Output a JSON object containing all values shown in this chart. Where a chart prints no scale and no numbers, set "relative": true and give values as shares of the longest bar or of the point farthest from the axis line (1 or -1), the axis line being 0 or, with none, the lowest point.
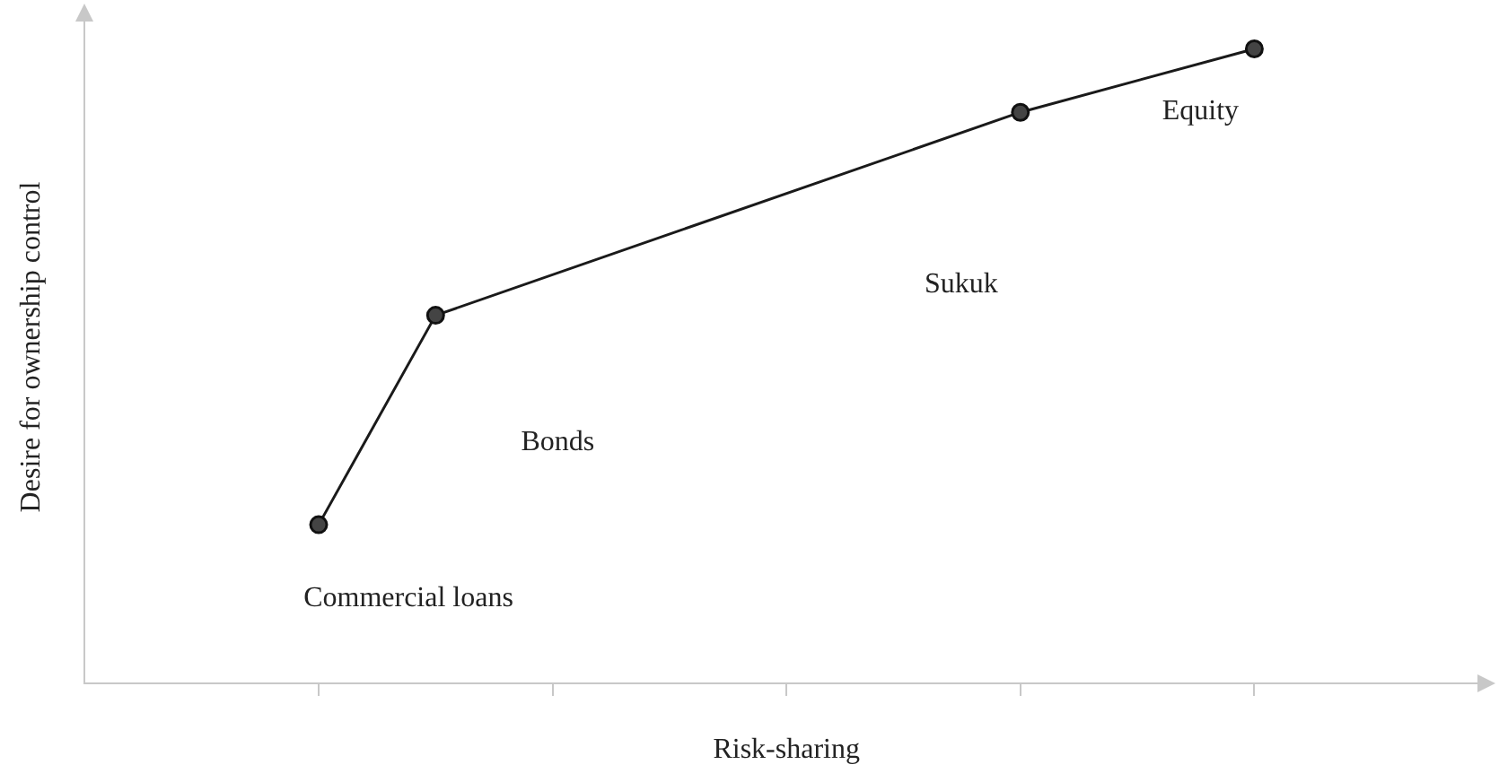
{
  "chart_data": {
    "type": "line",
    "relative": true,
    "xlabel": "Risk-sharing",
    "ylabel": "Desire for ownership control",
    "categories": [
      null,
      null,
      null,
      null,
      null,
      null,
      null,
      null,
      null,
      null,
      null,
      null,
      null
    ],
    "series": [
      {
        "color": "#1a1a1a",
        "values": [
          null,
          null,
          0.25,
          0.58,
          null,
          null,
          null,
          null,
          0.9,
          null,
          1,
          null,
          null
        ]
      }
    ],
    "marker": "circle",
    "line_style": "solid",
    "annotations": [
      "Commercial loans",
      "Bonds",
      "Sukuk",
      "Equity"
    ]
  }
}
